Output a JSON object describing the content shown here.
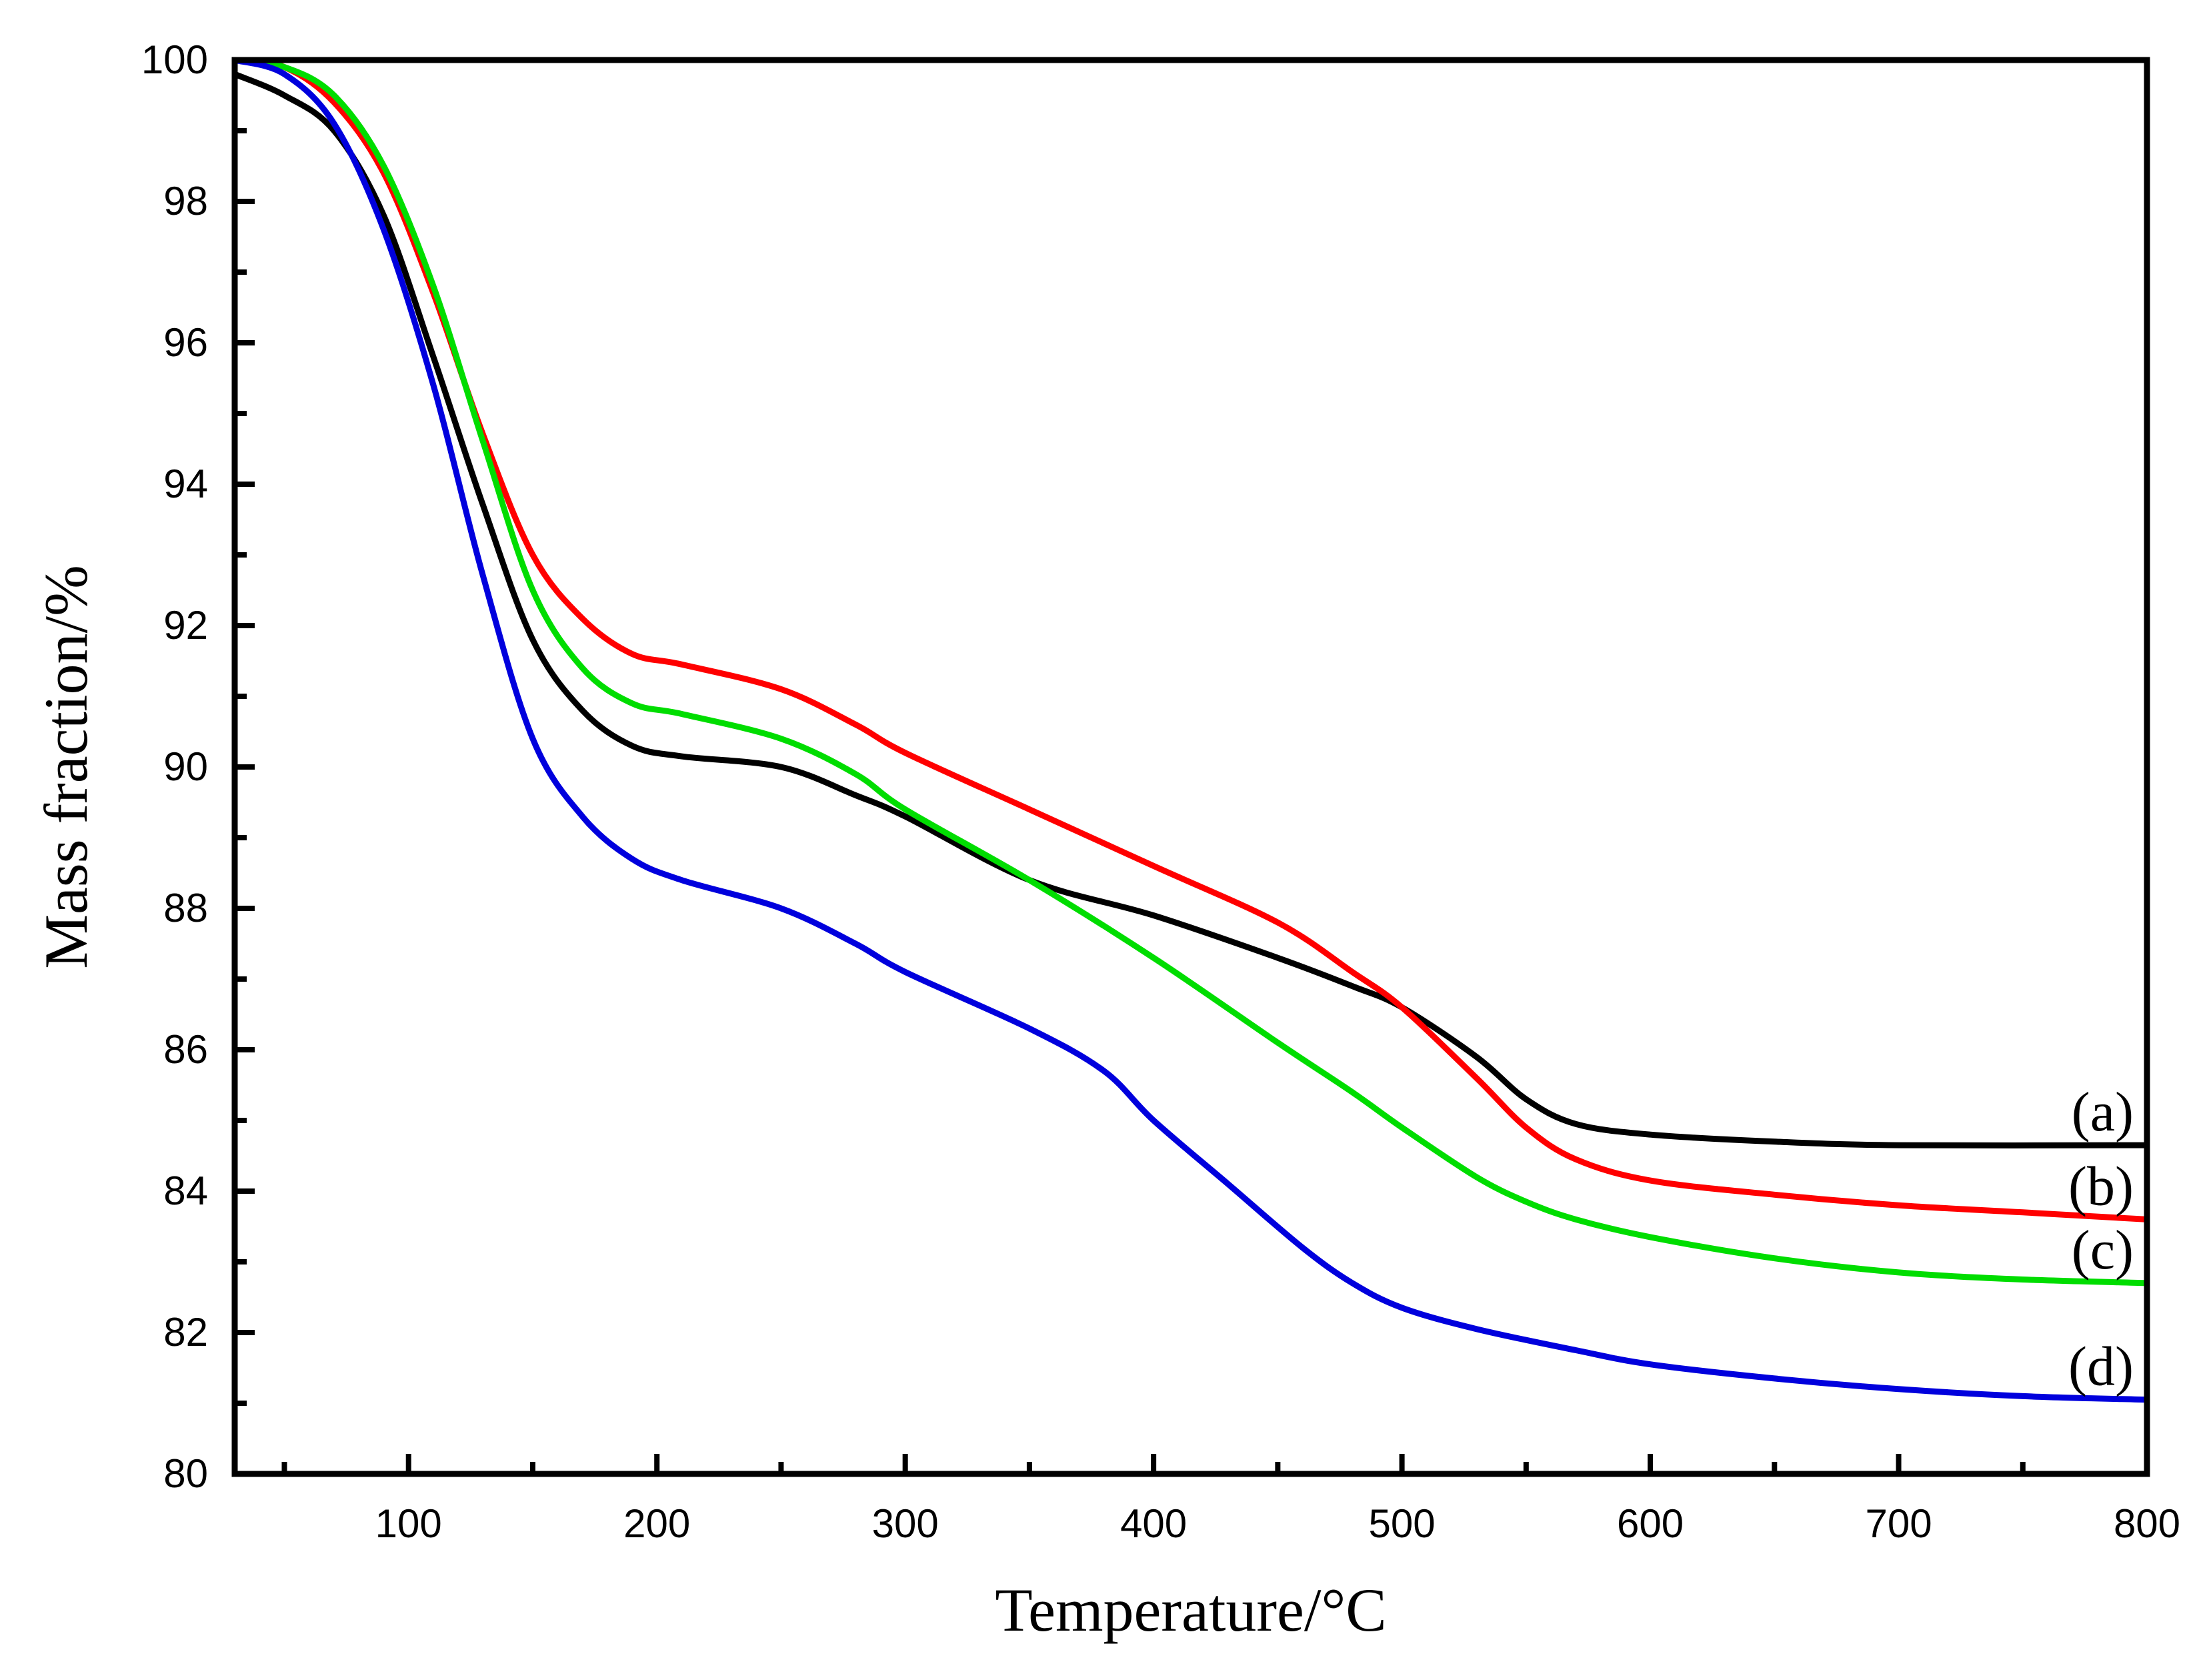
{
  "chart_data": {
    "type": "line",
    "title": "",
    "xlabel": "Temperature/°C",
    "ylabel": "Mass fraction/%",
    "xlim": [
      30,
      800
    ],
    "ylim": [
      80,
      100
    ],
    "x_ticks": [
      100,
      200,
      300,
      400,
      500,
      600,
      700,
      800
    ],
    "y_ticks": [
      80,
      82,
      84,
      86,
      88,
      90,
      92,
      94,
      96,
      98,
      100
    ],
    "grid": false,
    "legend": "none",
    "series": [
      {
        "label": "(a)",
        "color": "#000000",
        "points": [
          [
            30,
            99.8
          ],
          [
            50,
            99.5
          ],
          [
            70,
            99.0
          ],
          [
            90,
            97.8
          ],
          [
            110,
            95.8
          ],
          [
            130,
            93.7
          ],
          [
            150,
            91.8
          ],
          [
            170,
            90.8
          ],
          [
            190,
            90.3
          ],
          [
            210,
            90.15
          ],
          [
            250,
            90.0
          ],
          [
            280,
            89.6
          ],
          [
            300,
            89.3
          ],
          [
            350,
            88.4
          ],
          [
            400,
            87.9
          ],
          [
            450,
            87.3
          ],
          [
            480,
            86.9
          ],
          [
            500,
            86.6
          ],
          [
            530,
            85.9
          ],
          [
            550,
            85.3
          ],
          [
            570,
            84.95
          ],
          [
            600,
            84.8
          ],
          [
            650,
            84.7
          ],
          [
            700,
            84.65
          ],
          [
            800,
            84.65
          ]
        ]
      },
      {
        "label": "(b)",
        "color": "#ff0000",
        "points": [
          [
            30,
            100.0
          ],
          [
            50,
            99.9
          ],
          [
            70,
            99.4
          ],
          [
            90,
            98.4
          ],
          [
            110,
            96.7
          ],
          [
            130,
            94.7
          ],
          [
            150,
            93.0
          ],
          [
            170,
            92.1
          ],
          [
            190,
            91.6
          ],
          [
            210,
            91.45
          ],
          [
            250,
            91.1
          ],
          [
            280,
            90.6
          ],
          [
            300,
            90.2
          ],
          [
            350,
            89.4
          ],
          [
            400,
            88.6
          ],
          [
            450,
            87.8
          ],
          [
            480,
            87.1
          ],
          [
            500,
            86.6
          ],
          [
            530,
            85.6
          ],
          [
            550,
            84.9
          ],
          [
            570,
            84.45
          ],
          [
            600,
            84.15
          ],
          [
            650,
            83.95
          ],
          [
            700,
            83.8
          ],
          [
            750,
            83.7
          ],
          [
            800,
            83.6
          ]
        ]
      },
      {
        "label": "(c)",
        "color": "#00dd00",
        "points": [
          [
            30,
            100.0
          ],
          [
            50,
            99.9
          ],
          [
            70,
            99.5
          ],
          [
            90,
            98.5
          ],
          [
            110,
            96.8
          ],
          [
            130,
            94.6
          ],
          [
            150,
            92.5
          ],
          [
            170,
            91.4
          ],
          [
            190,
            90.9
          ],
          [
            210,
            90.75
          ],
          [
            250,
            90.4
          ],
          [
            280,
            89.9
          ],
          [
            300,
            89.4
          ],
          [
            350,
            88.4
          ],
          [
            400,
            87.3
          ],
          [
            450,
            86.1
          ],
          [
            480,
            85.4
          ],
          [
            500,
            84.9
          ],
          [
            530,
            84.2
          ],
          [
            550,
            83.85
          ],
          [
            570,
            83.6
          ],
          [
            600,
            83.35
          ],
          [
            650,
            83.05
          ],
          [
            700,
            82.85
          ],
          [
            750,
            82.75
          ],
          [
            800,
            82.7
          ]
        ]
      },
      {
        "label": "(d)",
        "color": "#0000dd",
        "points": [
          [
            30,
            100.0
          ],
          [
            50,
            99.8
          ],
          [
            70,
            99.1
          ],
          [
            90,
            97.6
          ],
          [
            110,
            95.4
          ],
          [
            130,
            92.7
          ],
          [
            150,
            90.4
          ],
          [
            170,
            89.3
          ],
          [
            190,
            88.7
          ],
          [
            210,
            88.4
          ],
          [
            250,
            88.0
          ],
          [
            280,
            87.5
          ],
          [
            300,
            87.1
          ],
          [
            350,
            86.3
          ],
          [
            380,
            85.7
          ],
          [
            400,
            85.0
          ],
          [
            430,
            84.1
          ],
          [
            460,
            83.2
          ],
          [
            480,
            82.7
          ],
          [
            500,
            82.35
          ],
          [
            530,
            82.05
          ],
          [
            570,
            81.75
          ],
          [
            600,
            81.55
          ],
          [
            650,
            81.35
          ],
          [
            700,
            81.2
          ],
          [
            750,
            81.1
          ],
          [
            800,
            81.05
          ]
        ]
      }
    ]
  }
}
